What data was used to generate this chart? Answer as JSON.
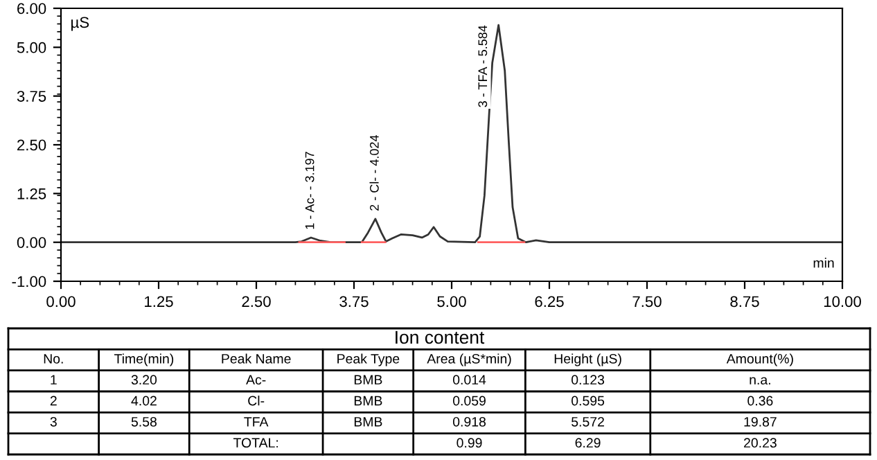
{
  "chart_data": [
    {
      "type": "line",
      "xlabel": "min",
      "ylabel": "µS",
      "xlim": [
        0,
        10
      ],
      "xticks": [
        {
          "value": 0,
          "label": "0.00"
        },
        1.25,
        {
          "value": 2.5,
          "label": "2.50"
        },
        3.75,
        {
          "value": 5,
          "label": "5.00"
        },
        6.25,
        {
          "value": 7.5,
          "label": "7.50"
        },
        8.75,
        {
          "value": 10,
          "label": "10.00"
        }
      ],
      "ylim": [
        -1,
        6
      ],
      "yticks": [
        {
          "value": -1,
          "label": "-1.00"
        },
        {
          "value": 0,
          "label": "0.00"
        },
        1.25,
        {
          "value": 2.5,
          "label": "2.50"
        },
        3.75,
        {
          "value": 5,
          "label": "5.00"
        },
        {
          "value": 6,
          "label": "6.00"
        }
      ],
      "grid": false,
      "marker": "none",
      "line_style": "solid",
      "series": [
        {
          "color": "#333333",
          "x": [
            0,
            3.0,
            3.08,
            3.2,
            3.32,
            3.45,
            3.85,
            3.93,
            4.024,
            4.1,
            4.16,
            4.24,
            4.35,
            4.5,
            4.62,
            4.7,
            4.77,
            4.85,
            4.95,
            5.3,
            5.36,
            5.42,
            5.48,
            5.52,
            5.6,
            5.68,
            5.73,
            5.78,
            5.85,
            5.95,
            6.08,
            6.25,
            10
          ],
          "values": [
            0,
            0,
            0.02,
            0.12,
            0.04,
            0,
            0,
            0.25,
            0.6,
            0.25,
            0.02,
            0.1,
            0.2,
            0.18,
            0.12,
            0.2,
            0.39,
            0.15,
            0.02,
            0,
            0.15,
            1.2,
            3.3,
            4.6,
            5.57,
            4.4,
            2.6,
            0.9,
            0.1,
            0,
            0.05,
            0,
            0
          ]
        },
        {
          "color": "#ff6060",
          "x": [
            3.05,
            3.63
          ],
          "values": [
            0,
            0
          ]
        },
        {
          "color": "#ff6060",
          "x": [
            3.85,
            4.15
          ],
          "values": [
            0,
            0
          ]
        },
        {
          "color": "#ff6060",
          "x": [
            5.34,
            5.93
          ],
          "values": [
            0,
            0
          ]
        }
      ],
      "annotations": [
        {
          "text": "1 - Ac- - 3.197",
          "x": 3.197,
          "y": 0.123
        },
        {
          "text": "2 - Cl- - 4.024",
          "x": 4.024,
          "y": 0.6
        },
        {
          "text": "3 - TFA - 5.584",
          "x": 5.584,
          "y": 5.57
        }
      ]
    },
    {
      "type": "other",
      "title": "Ion content",
      "categories": [
        "No.",
        "Time(min)",
        "Peak Name",
        "Peak Type",
        "Area (µS*min)",
        "Height (µS)",
        "Amount(%)"
      ],
      "annotations": [
        "1",
        "3.20",
        "Ac-",
        "BMB",
        "0.014",
        "0.123",
        "n.a.",
        "2",
        "4.02",
        "Cl-",
        "BMB",
        "0.059",
        "0.595",
        "0.36",
        "3",
        "5.58",
        "TFA",
        "BMB",
        "0.918",
        "5.572",
        "19.87",
        null,
        null,
        "TOTAL:",
        null,
        "0.99",
        "6.29",
        "20.23"
      ]
    }
  ]
}
